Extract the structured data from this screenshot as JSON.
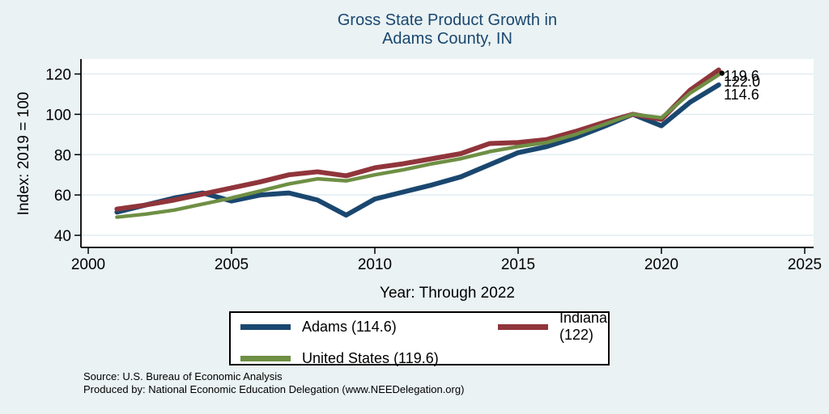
{
  "title": {
    "line1": "Gross State Product Growth in",
    "line2": "Adams County, IN"
  },
  "axes": {
    "y_label": "Index: 2019 = 100",
    "x_label": "Year: Through 2022"
  },
  "legend": {
    "items": [
      {
        "label": "Adams  (114.6)"
      },
      {
        "label": "Indiana (122)"
      },
      {
        "label": "United States (119.6)"
      }
    ]
  },
  "source": {
    "line1": "Source: U.S. Bureau of Economic Analysis",
    "line2": "Produced by: National Economic Education Delegation (www.NEEDelegation.org)"
  },
  "colors": {
    "background": "#eaf2f3",
    "plot_bg": "#ffffff",
    "grid": "#dce9ef",
    "axis": "#000000",
    "title": "#1a476f",
    "end_marker": "#000000"
  },
  "chart_data": {
    "type": "line",
    "title": "Gross State Product Growth in Adams County, IN",
    "xlabel": "Year: Through 2022",
    "ylabel": "Index: 2019 = 100",
    "xlim": [
      2000,
      2025
    ],
    "ylim": [
      40,
      127
    ],
    "x_ticks": [
      2000,
      2005,
      2010,
      2015,
      2020,
      2025
    ],
    "y_ticks": [
      40,
      60,
      80,
      100,
      120
    ],
    "grid": "horizontal",
    "legend_position": "bottom-center",
    "x": [
      2001,
      2002,
      2003,
      2004,
      2005,
      2006,
      2007,
      2008,
      2009,
      2010,
      2011,
      2012,
      2013,
      2014,
      2015,
      2016,
      2017,
      2018,
      2019,
      2020,
      2021,
      2022
    ],
    "series": [
      {
        "name": "Adams",
        "color": "#1a476f",
        "stroke_width": 6,
        "end_label": "114.6",
        "values": [
          51.5,
          55,
          58.5,
          61,
          57,
          60,
          61,
          57.5,
          50,
          58,
          61.5,
          65,
          69,
          75,
          81,
          84,
          88.5,
          94,
          100,
          94.3,
          106,
          114.6
        ]
      },
      {
        "name": "Indiana",
        "color": "#90353b",
        "stroke_width": 6,
        "end_label": "122.0",
        "values": [
          53,
          55,
          57.5,
          60.5,
          63.5,
          66.5,
          70,
          71.5,
          69.5,
          73.5,
          75.5,
          78,
          80.5,
          85.5,
          86,
          87.5,
          91.5,
          96,
          100,
          97.5,
          112,
          122
        ]
      },
      {
        "name": "United States",
        "color": "#6e8f44",
        "stroke_width": 4.5,
        "end_label": "119.6",
        "values": [
          49,
          50.5,
          52.5,
          55.5,
          58.5,
          62,
          65.5,
          68,
          67,
          70,
          72.5,
          75.5,
          78,
          81.5,
          84,
          86,
          90,
          95,
          100,
          98.3,
          110.5,
          119.6
        ]
      }
    ]
  }
}
